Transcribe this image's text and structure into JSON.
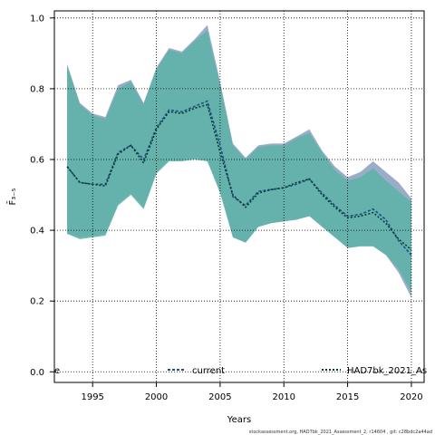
{
  "chart_data": {
    "type": "line",
    "xlabel": "Years",
    "ylabel": "F̄₃₋₅",
    "xlim": [
      1992,
      2021
    ],
    "ylim": [
      -0.03,
      1.02
    ],
    "x_ticks": [
      1995,
      2000,
      2005,
      2010,
      2015,
      2020
    ],
    "y_ticks": [
      0.0,
      0.2,
      0.4,
      0.6,
      0.8,
      1.0
    ],
    "x_tick_labels": [
      "1995",
      "2000",
      "2005",
      "2010",
      "2015",
      "2020"
    ],
    "y_tick_labels": [
      "0.0",
      "0.2",
      "0.4",
      "0.6",
      "0.8",
      "1.0"
    ],
    "grid": true,
    "legend_position": "bottom",
    "panel_label": "e",
    "years": [
      1993,
      1994,
      1995,
      1996,
      1997,
      1998,
      1999,
      2000,
      2001,
      2002,
      2003,
      2004,
      2005,
      2006,
      2007,
      2008,
      2009,
      2010,
      2011,
      2012,
      2013,
      2014,
      2015,
      2016,
      2017,
      2018,
      2019,
      2020
    ],
    "series": [
      {
        "name": "current",
        "color": "#1f4e8c",
        "band_color": "#8a9dc0",
        "values": [
          0.58,
          0.535,
          0.53,
          0.53,
          0.62,
          0.64,
          0.6,
          0.69,
          0.74,
          0.735,
          0.75,
          0.765,
          0.64,
          0.495,
          0.47,
          0.51,
          0.515,
          0.52,
          0.53,
          0.545,
          0.505,
          0.47,
          0.44,
          0.445,
          0.46,
          0.43,
          0.37,
          0.33
        ],
        "lower": [
          0.39,
          0.38,
          0.385,
          0.39,
          0.475,
          0.505,
          0.465,
          0.565,
          0.6,
          0.6,
          0.605,
          0.6,
          0.51,
          0.38,
          0.365,
          0.41,
          0.42,
          0.425,
          0.43,
          0.44,
          0.41,
          0.38,
          0.35,
          0.355,
          0.355,
          0.33,
          0.28,
          0.21
        ],
        "upper": [
          0.87,
          0.76,
          0.73,
          0.72,
          0.81,
          0.825,
          0.76,
          0.86,
          0.915,
          0.905,
          0.94,
          0.98,
          0.82,
          0.645,
          0.605,
          0.64,
          0.645,
          0.645,
          0.665,
          0.685,
          0.625,
          0.58,
          0.55,
          0.565,
          0.595,
          0.565,
          0.535,
          0.49
        ]
      },
      {
        "name": "HAD7bk_2021_As",
        "color": "#0b3d2e",
        "band_color": "#5fb3a8",
        "values": [
          0.58,
          0.535,
          0.53,
          0.525,
          0.615,
          0.64,
          0.59,
          0.685,
          0.735,
          0.73,
          0.745,
          0.755,
          0.62,
          0.5,
          0.465,
          0.505,
          0.515,
          0.52,
          0.535,
          0.545,
          0.5,
          0.465,
          0.435,
          0.44,
          0.45,
          0.42,
          0.375,
          0.345
        ],
        "lower": [
          0.39,
          0.375,
          0.38,
          0.385,
          0.47,
          0.5,
          0.46,
          0.56,
          0.595,
          0.595,
          0.6,
          0.595,
          0.505,
          0.38,
          0.365,
          0.41,
          0.42,
          0.425,
          0.43,
          0.44,
          0.41,
          0.38,
          0.35,
          0.355,
          0.355,
          0.33,
          0.29,
          0.225
        ],
        "upper": [
          0.865,
          0.755,
          0.725,
          0.715,
          0.8,
          0.82,
          0.755,
          0.855,
          0.91,
          0.9,
          0.935,
          0.965,
          0.81,
          0.64,
          0.6,
          0.635,
          0.64,
          0.64,
          0.66,
          0.675,
          0.62,
          0.57,
          0.54,
          0.55,
          0.575,
          0.54,
          0.51,
          0.48
        ]
      }
    ],
    "footer": "stockassessment.org, HAD7bk_2021_Assessment_2, r14604 , git: c28bdc2a44ad"
  }
}
